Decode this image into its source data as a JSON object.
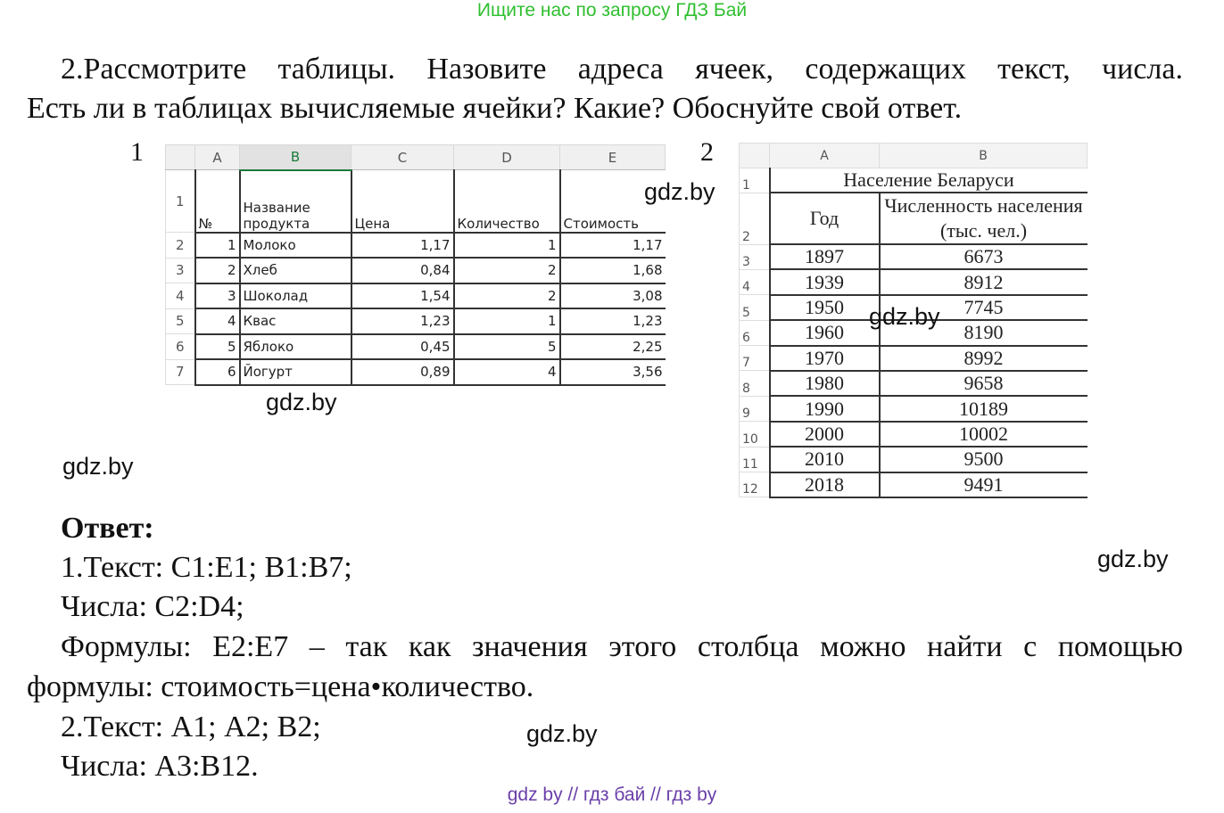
{
  "top_link": "Ищите нас по запросу ГДЗ Бай",
  "task": {
    "line1": "2.Рассмотрите таблицы. Назовите адреса ячеек, содержащих текст, числа.",
    "line2": "Есть ли в таблицах вычисляемые ячейки? Какие? Обоснуйте свой ответ."
  },
  "table1": {
    "number": "1",
    "col_headers": [
      "A",
      "B",
      "C",
      "D",
      "E"
    ],
    "header_row": [
      "№",
      "Название продукта",
      "Цена",
      "Количество",
      "Стоимость"
    ],
    "rows": [
      [
        "1",
        "Молоко",
        "1,17",
        "1",
        "1,17"
      ],
      [
        "2",
        "Хлеб",
        "0,84",
        "2",
        "1,68"
      ],
      [
        "3",
        "Шоколад",
        "1,54",
        "2",
        "3,08"
      ],
      [
        "4",
        "Квас",
        "1,23",
        "1",
        "1,23"
      ],
      [
        "5",
        "Яблоко",
        "0,45",
        "5",
        "2,25"
      ],
      [
        "6",
        "Йогурт",
        "0,89",
        "4",
        "3,56"
      ]
    ]
  },
  "table2": {
    "number": "2",
    "col_headers": [
      "A",
      "B"
    ],
    "title": "Население Беларуси",
    "header_row": [
      "Год",
      "Численность населения (тыс. чел.)"
    ],
    "rows": [
      [
        "1897",
        "6673"
      ],
      [
        "1939",
        "8912"
      ],
      [
        "1950",
        "7745"
      ],
      [
        "1960",
        "8190"
      ],
      [
        "1970",
        "8992"
      ],
      [
        "1980",
        "9658"
      ],
      [
        "1990",
        "10189"
      ],
      [
        "2000",
        "10002"
      ],
      [
        "2010",
        "9500"
      ],
      [
        "2018",
        "9491"
      ]
    ]
  },
  "answer": {
    "heading": "Ответ:",
    "l1": "1.Текст: С1:Е1; В1:В7;",
    "l2": "Числа: С2:D4;",
    "l3": "Формулы: Е2:Е7 – так как значения этого столбца можно найти с помощью",
    "l4": "формулы: стоимость=цена•количество.",
    "l5": "2.Текст: А1; А2; В2;",
    "l6": "Числа: А3:В12."
  },
  "watermark": "gdz.by",
  "footer": "gdz by  //  гдз бай  //  гдз by"
}
